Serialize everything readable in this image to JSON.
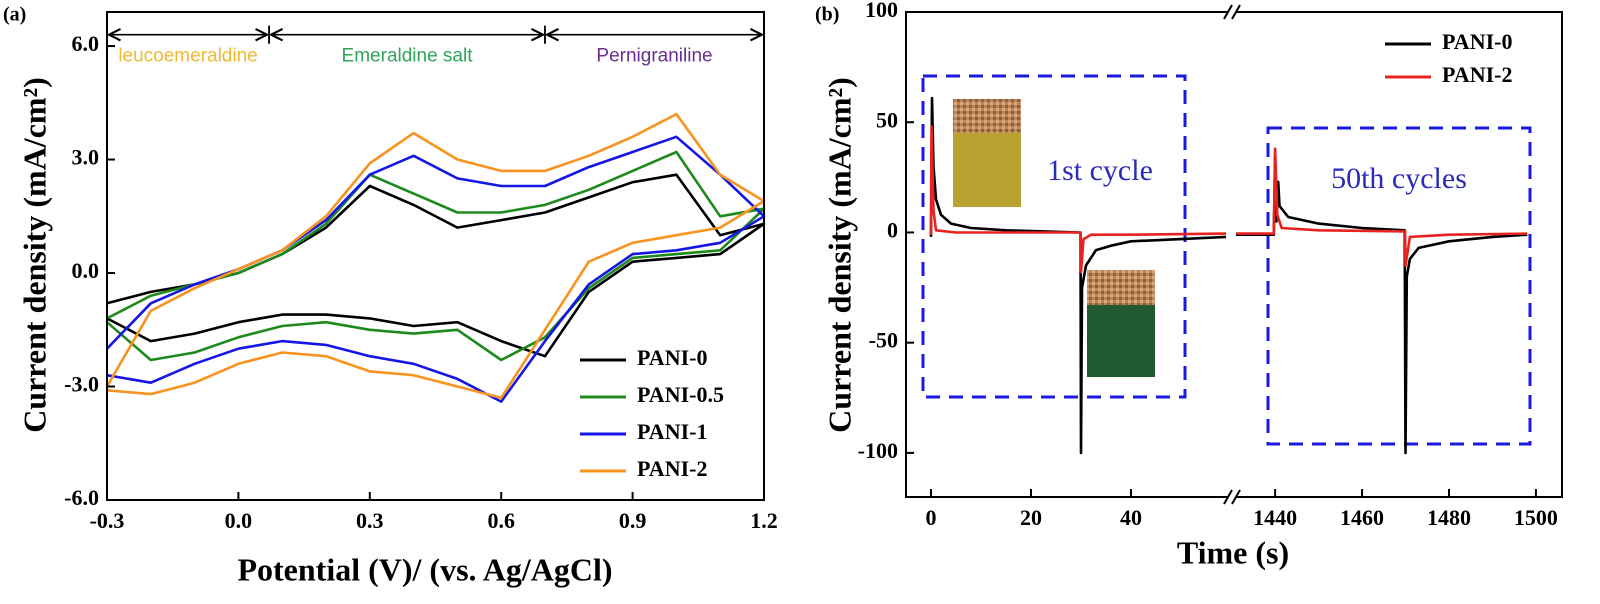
{
  "chart_data": [
    {
      "type": "line",
      "panel_label": "(a)",
      "x_label": "Potential (V)/ (vs. Ag/AgCl)",
      "y_label": "Current density (mA/cm²)",
      "xlim": [
        -0.3,
        1.2
      ],
      "ylim": [
        -6,
        6.9
      ],
      "xticks": [
        -0.3,
        {
          "value": 0,
          "label": "0.0"
        },
        0.3,
        0.6,
        0.9,
        1.2
      ],
      "yticks": [
        {
          "value": -6,
          "label": "-6.0"
        },
        {
          "value": -3,
          "label": "-3.0"
        },
        {
          "value": 0,
          "label": "0.0"
        },
        {
          "value": 3,
          "label": "3.0"
        },
        {
          "value": 6,
          "label": "6.0"
        }
      ],
      "legend": "lower right",
      "annotations": [
        {
          "text": "leucoemeraldine",
          "color": "#f0b930",
          "x": [
            -0.3,
            0.07
          ],
          "y": 6.3
        },
        {
          "text": "Emeraldine salt",
          "color": "#2ea55a",
          "x": [
            0.07,
            0.7
          ],
          "y": 6.3
        },
        {
          "text": "Pernigraniline",
          "color": "#6a2d91",
          "x": [
            0.7,
            1.2
          ],
          "y": 6.3
        }
      ],
      "x": [
        -0.3,
        -0.2,
        -0.1,
        0,
        0.1,
        0.2,
        0.3,
        0.4,
        0.5,
        0.6,
        0.7,
        0.8,
        0.9,
        1.0,
        1.1,
        1.2,
        1.1,
        1.0,
        0.9,
        0.8,
        0.7,
        0.6,
        0.5,
        0.4,
        0.3,
        0.2,
        0.1,
        0,
        -0.1,
        -0.2,
        -0.3
      ],
      "series": [
        {
          "name": "PANI-0",
          "color": "#000000",
          "values": [
            -0.8,
            -0.5,
            -0.3,
            0,
            0.5,
            1.2,
            2.3,
            1.8,
            1.2,
            1.4,
            1.6,
            2.0,
            2.4,
            2.6,
            1.0,
            1.3,
            0.5,
            0.4,
            0.3,
            -0.5,
            -2.2,
            -1.8,
            -1.3,
            -1.4,
            -1.2,
            -1.1,
            -1.1,
            -1.3,
            -1.6,
            -1.8,
            -1.2
          ]
        },
        {
          "name": "PANI-0.5",
          "color": "#1e8a1e",
          "values": [
            -1.2,
            -0.6,
            -0.3,
            0,
            0.5,
            1.3,
            2.6,
            2.1,
            1.6,
            1.6,
            1.8,
            2.2,
            2.7,
            3.2,
            1.5,
            1.7,
            0.6,
            0.5,
            0.4,
            -0.4,
            -1.7,
            -2.3,
            -1.5,
            -1.6,
            -1.5,
            -1.3,
            -1.4,
            -1.7,
            -2.1,
            -2.3,
            -1.3
          ]
        },
        {
          "name": "PANI-1",
          "color": "#1515e6",
          "values": [
            -2.0,
            -0.8,
            -0.3,
            0.1,
            0.6,
            1.4,
            2.6,
            3.1,
            2.5,
            2.3,
            2.3,
            2.8,
            3.2,
            3.6,
            2.6,
            1.5,
            0.8,
            0.6,
            0.5,
            -0.3,
            -1.8,
            -3.4,
            -2.8,
            -2.4,
            -2.2,
            -1.9,
            -1.8,
            -2.0,
            -2.4,
            -2.9,
            -2.7
          ]
        },
        {
          "name": "PANI-2",
          "color": "#f7931e",
          "values": [
            -3.0,
            -1.0,
            -0.4,
            0.1,
            0.6,
            1.5,
            2.9,
            3.7,
            3.0,
            2.7,
            2.7,
            3.1,
            3.6,
            4.2,
            2.6,
            1.9,
            1.2,
            1.0,
            0.8,
            0.3,
            -1.5,
            -3.3,
            -3.0,
            -2.7,
            -2.6,
            -2.2,
            -2.1,
            -2.4,
            -2.9,
            -3.2,
            -3.1
          ]
        }
      ]
    },
    {
      "type": "line",
      "panel_label": "(b)",
      "x_label": "Time (s)",
      "y_label": "Current density (mA/cm²)",
      "ylim": [
        -120,
        100
      ],
      "yticks": [
        -100,
        -50,
        0,
        50,
        100
      ],
      "x_segments": [
        {
          "xlim": [
            -5,
            59.4
          ],
          "xticks": [
            0,
            20,
            40
          ]
        },
        {
          "xlim": [
            1431,
            1506
          ],
          "xticks": [
            1440,
            1460,
            1480,
            1500
          ]
        }
      ],
      "legend": "upper right",
      "annotations": [
        {
          "text": "1st cycle",
          "color": "#2a2ab8"
        },
        {
          "text": "50th cycles",
          "color": "#2a2ab8"
        }
      ],
      "series": [
        {
          "name": "PANI-0",
          "color": "#000000",
          "x": [
            0,
            0.2,
            0.5,
            1,
            2,
            4,
            8,
            15,
            29.9,
            30,
            30.2,
            31,
            33,
            36,
            40,
            50,
            59,
            1431,
            1439.7,
            1440,
            1440.3,
            1440.7,
            1441,
            1443,
            1450,
            1460,
            1469.8,
            1470,
            1470.3,
            1471,
            1473,
            1480,
            1490,
            1498
          ],
          "values": [
            -2,
            61,
            30,
            15,
            8,
            4,
            2,
            1,
            0,
            -100,
            -25,
            -15,
            -8,
            -6,
            -4,
            -3,
            -2,
            -1,
            -1,
            35,
            5,
            23,
            12,
            7,
            4,
            2,
            1,
            -100,
            -20,
            -12,
            -7,
            -4,
            -2,
            -1
          ]
        },
        {
          "name": "PANI-2",
          "color": "#e8231f",
          "x": [
            0,
            0.1,
            0.5,
            1,
            5,
            29.9,
            30,
            30.5,
            32,
            40,
            59,
            1431,
            1439.7,
            1440,
            1440.5,
            1441.5,
            1450,
            1469.9,
            1470,
            1471,
            1480,
            1498
          ],
          "values": [
            -1,
            48,
            10,
            1,
            0,
            0,
            -18,
            -3,
            -1,
            -1,
            -0.5,
            -0.5,
            -0.5,
            38,
            8,
            2,
            1,
            0.5,
            -15,
            -2,
            -1,
            -0.5
          ]
        }
      ]
    }
  ]
}
